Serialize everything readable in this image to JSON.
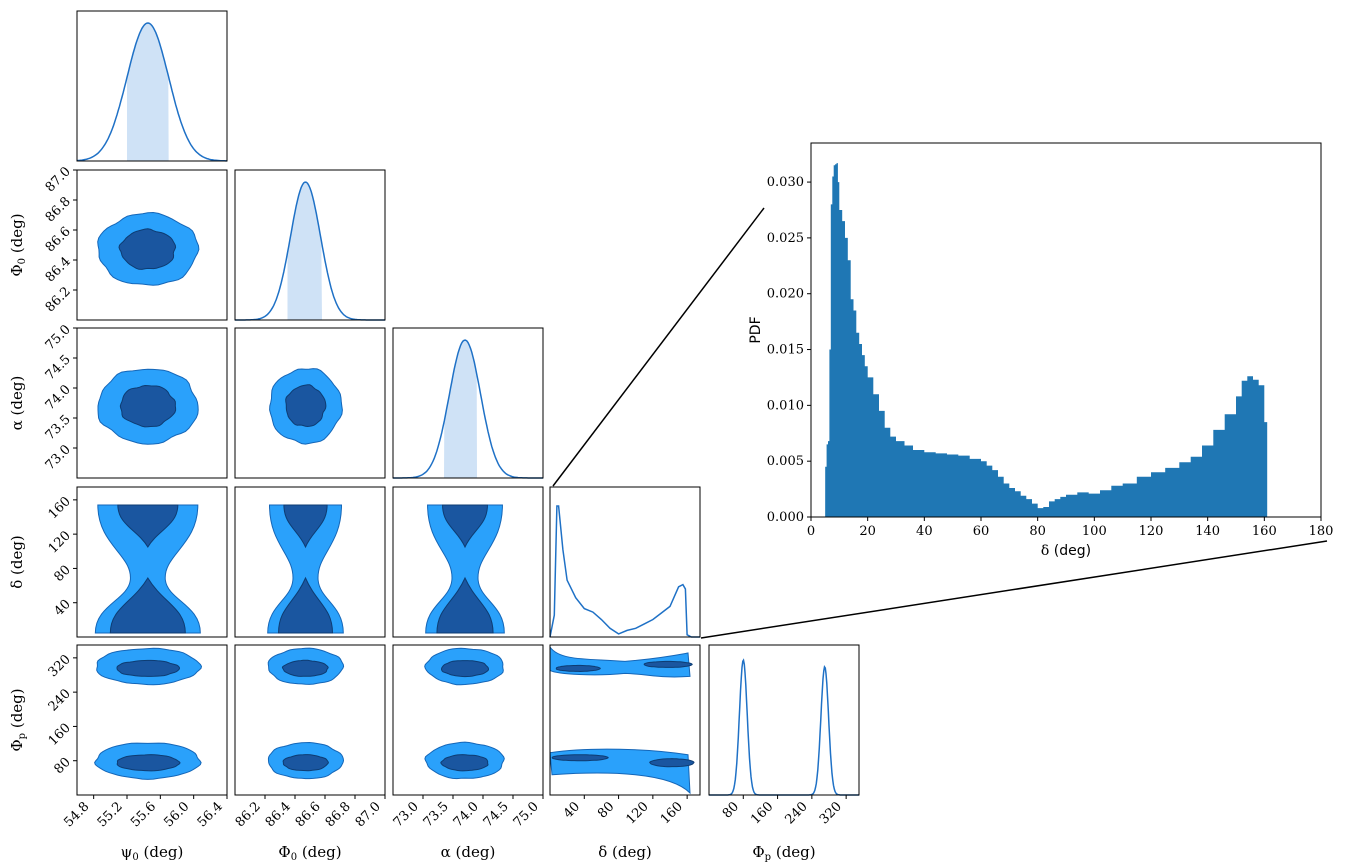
{
  "chart_data": [
    {
      "type": "corner",
      "parameters": [
        {
          "key": "psi0",
          "label": "ψ",
          "sub": "0",
          "unit": " (deg)",
          "ticks": [
            "54.8",
            "55.2",
            "55.6",
            "56.0",
            "56.4"
          ],
          "range": [
            54.6,
            56.4
          ],
          "peak": 55.45,
          "sigma": 0.25,
          "ci": [
            55.2,
            55.7
          ]
        },
        {
          "key": "Phi0",
          "label": "Φ",
          "sub": "0",
          "unit": " (deg)",
          "ticks": [
            "86.2",
            "86.4",
            "86.6",
            "86.8",
            "87.0"
          ],
          "range": [
            86.0,
            87.0
          ],
          "peak": 86.47,
          "sigma": 0.1,
          "ci": [
            86.35,
            86.58
          ]
        },
        {
          "key": "alpha",
          "label": "α",
          "sub": "",
          "unit": " (deg)",
          "ticks": [
            "73.0",
            "73.5",
            "74.0",
            "74.5",
            "75.0"
          ],
          "range": [
            72.5,
            75.0
          ],
          "peak": 73.7,
          "sigma": 0.26,
          "ci": [
            73.35,
            73.9
          ]
        },
        {
          "key": "delta",
          "label": "δ",
          "sub": "",
          "unit": " (deg)",
          "ticks": [
            "40",
            "80",
            "120",
            "160"
          ],
          "range": [
            0,
            175
          ]
        },
        {
          "key": "Phip",
          "label": "Φ",
          "sub": "p",
          "unit": " (deg)",
          "ticks": [
            "80",
            "160",
            "240",
            "320"
          ],
          "range": [
            0,
            350
          ]
        }
      ],
      "y_tick_labels": {
        "Phi0": [
          "86.2",
          "86.4",
          "86.6",
          "86.8",
          "87.0"
        ],
        "alpha": [
          "73.0",
          "73.5",
          "74.0",
          "74.5",
          "75.0"
        ],
        "delta": [
          "40",
          "80",
          "120",
          "160"
        ],
        "Phip": [
          "80",
          "160",
          "240",
          "320"
        ]
      },
      "delta_marginal": {
        "x": [
          0,
          5,
          8,
          10,
          15,
          20,
          30,
          40,
          50,
          60,
          70,
          80,
          90,
          100,
          110,
          120,
          130,
          140,
          150,
          155,
          158,
          160,
          165,
          170,
          175
        ],
        "y": [
          0,
          0.005,
          0.03,
          0.03,
          0.02,
          0.013,
          0.009,
          0.0065,
          0.0057,
          0.004,
          0.002,
          0.0007,
          0.0015,
          0.002,
          0.003,
          0.004,
          0.0055,
          0.007,
          0.0115,
          0.012,
          0.011,
          0.0005,
          0,
          0,
          0
        ]
      },
      "Phip_marginal": {
        "peaks": [
          80,
          270
        ],
        "sigma": 9
      }
    },
    {
      "type": "area",
      "xlabel": "δ",
      "xlabel_unit": " (deg)",
      "ylabel": "PDF",
      "xlim": [
        0,
        180
      ],
      "ylim": [
        0,
        0.0335
      ],
      "xticks": [
        "0",
        "20",
        "40",
        "60",
        "80",
        "100",
        "120",
        "140",
        "160",
        "180"
      ],
      "yticks": [
        "0.000",
        "0.005",
        "0.010",
        "0.015",
        "0.020",
        "0.025",
        "0.030"
      ],
      "color": "#1f77b4",
      "x": [
        5,
        5.5,
        6,
        6.5,
        7,
        7.5,
        8,
        8.5,
        9,
        9.5,
        10,
        11,
        12,
        13,
        14,
        15,
        16,
        17,
        18,
        19,
        20,
        22,
        24,
        26,
        28,
        30,
        33,
        36,
        40,
        44,
        48,
        52,
        56,
        60,
        62,
        64,
        66,
        68,
        70,
        72,
        74,
        76,
        78,
        80,
        82,
        84,
        86,
        88,
        90,
        94,
        98,
        102,
        106,
        110,
        115,
        120,
        125,
        130,
        134,
        138,
        142,
        146,
        150,
        152,
        154,
        156,
        158,
        160,
        161
      ],
      "y": [
        0.0045,
        0.0065,
        0.0068,
        0.015,
        0.028,
        0.0305,
        0.0315,
        0.0316,
        0.0317,
        0.03,
        0.0275,
        0.0265,
        0.025,
        0.023,
        0.0195,
        0.0185,
        0.0165,
        0.0155,
        0.0145,
        0.0135,
        0.0125,
        0.011,
        0.0095,
        0.008,
        0.0072,
        0.0068,
        0.0064,
        0.006,
        0.0058,
        0.0057,
        0.0056,
        0.0055,
        0.0052,
        0.005,
        0.0046,
        0.0042,
        0.0036,
        0.003,
        0.0026,
        0.0023,
        0.0019,
        0.0016,
        0.0012,
        0.0008,
        0.0009,
        0.0014,
        0.0016,
        0.0018,
        0.002,
        0.0022,
        0.0021,
        0.0024,
        0.0028,
        0.003,
        0.0036,
        0.004,
        0.0044,
        0.0049,
        0.0054,
        0.0064,
        0.0078,
        0.0092,
        0.0108,
        0.0122,
        0.0126,
        0.0123,
        0.0118,
        0.0085,
        0.0003
      ]
    }
  ]
}
